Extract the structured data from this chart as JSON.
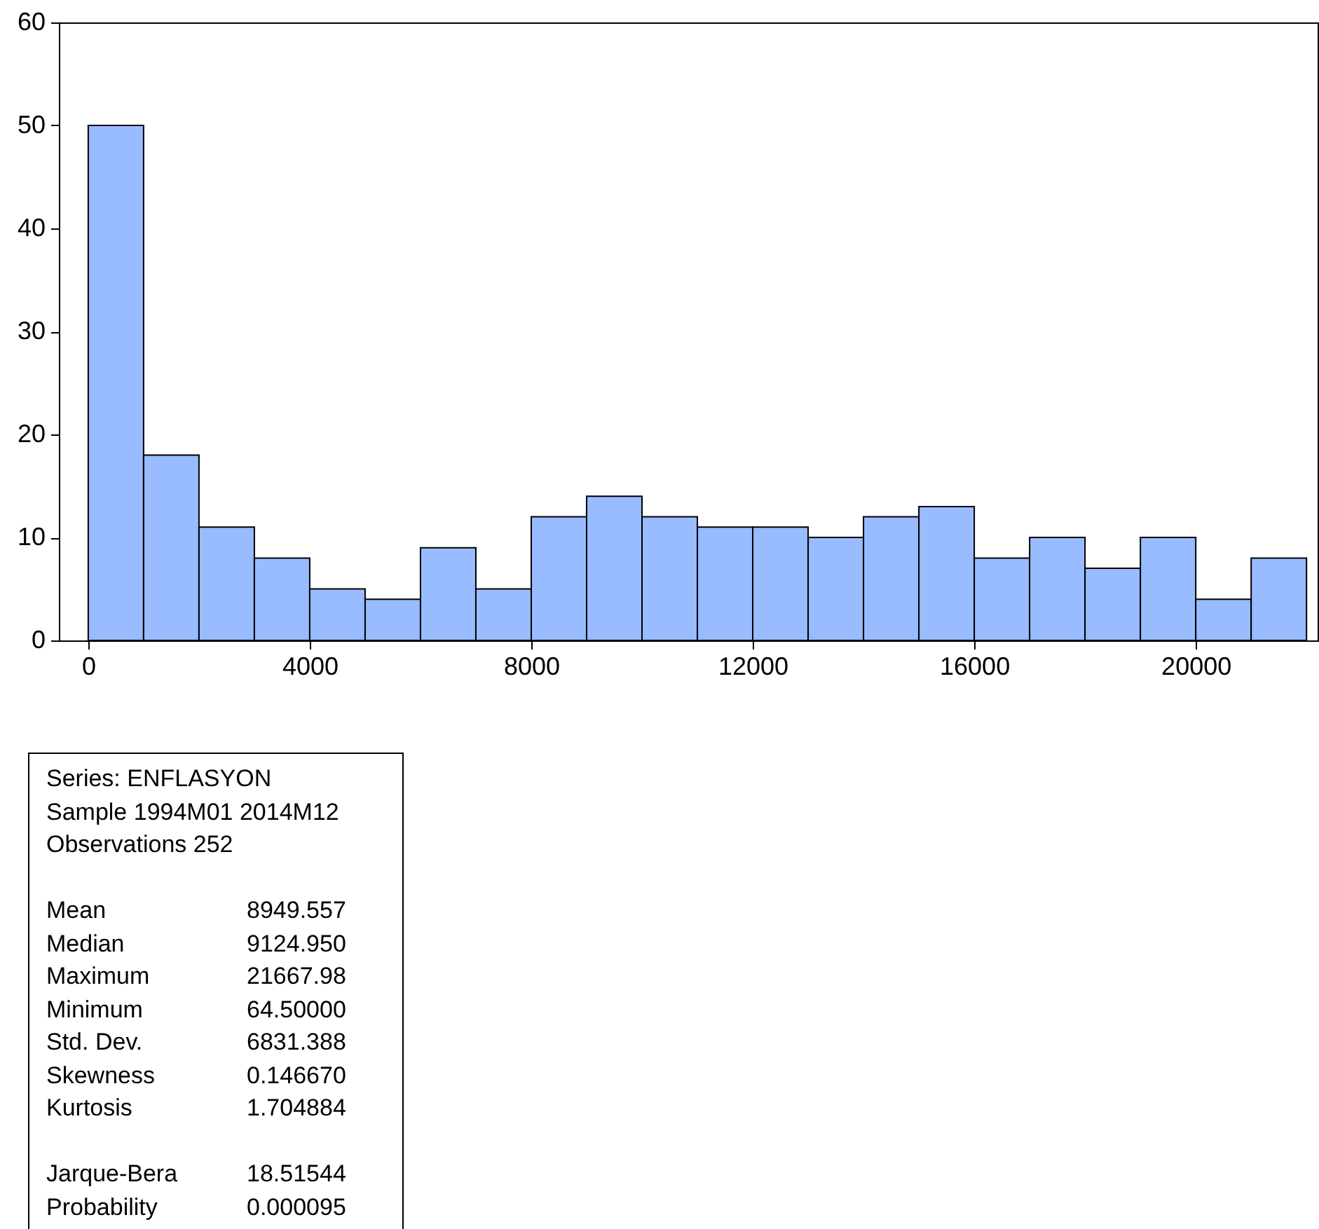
{
  "chart_data": {
    "type": "histogram",
    "bins": [
      0,
      1000,
      2000,
      3000,
      4000,
      5000,
      6000,
      7000,
      8000,
      9000,
      10000,
      11000,
      12000,
      13000,
      14000,
      15000,
      16000,
      17000,
      18000,
      19000,
      20000,
      21000,
      22000
    ],
    "values": [
      50,
      18,
      11,
      8,
      5,
      4,
      9,
      5,
      12,
      14,
      12,
      11,
      11,
      10,
      12,
      13,
      8,
      10,
      7,
      10,
      4,
      8
    ],
    "color": "#99bbff",
    "xlim": [
      -530,
      22200
    ],
    "xticks": [
      0,
      4000,
      8000,
      12000,
      16000,
      20000
    ],
    "ylim": [
      0,
      60
    ],
    "yticks": [
      0,
      10,
      20,
      30,
      40,
      50,
      60
    ],
    "grid": false,
    "annotations": [
      "Series: ENFLASYON",
      "Sample 1994M01 2014M12",
      "Observations 252",
      "Mean 8949.557",
      "Median 9124.950",
      "Maximum 21667.98",
      "Minimum 64.50000",
      "Std. Dev. 6831.388",
      "Skewness 0.146670",
      "Kurtosis 1.704884",
      "Jarque-Bera 18.51544",
      "Probability 0.000095"
    ]
  }
}
